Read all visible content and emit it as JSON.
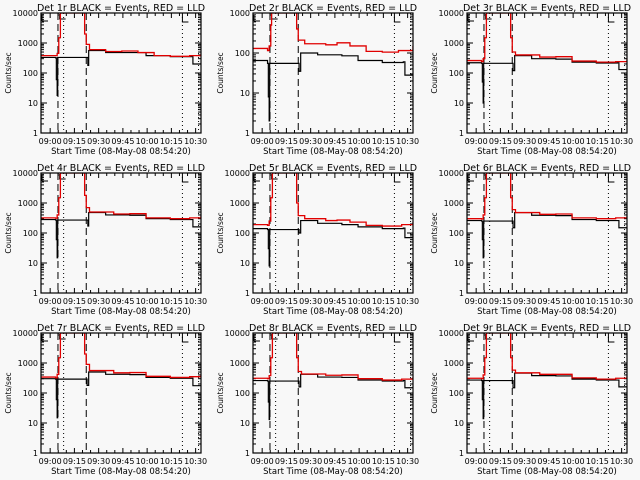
{
  "chart_data": {
    "type": "line",
    "layout": "3x3 grid",
    "shared": {
      "xlabel": "Start Time (08-May-08 08:54:20)",
      "ylabel": "Counts/sec",
      "xticks": [
        "09:00",
        "09:15",
        "09:30",
        "09:45",
        "10:00",
        "10:15",
        "10:30"
      ],
      "x_start_min": 0,
      "x_end_min": 99,
      "x_tick_offsets_min": [
        5.67,
        20.67,
        35.67,
        50.67,
        65.67,
        80.67,
        95.67
      ],
      "y_scale": "log",
      "series_names": [
        "Events",
        "LLD"
      ],
      "series_colors": {
        "Events": "#000000",
        "LLD": "#e00000"
      },
      "markers": {
        "dashed_min": [
          10.5,
          28
        ],
        "dotted_min": [
          14,
          87.5,
          97.5
        ],
        "S_min": 14,
        "E_min": 87.5
      }
    },
    "panels": [
      {
        "title": "Det 1r BLACK = Events, RED = LLD",
        "ylim": [
          1,
          10000
        ],
        "yticks": [
          "1",
          "10",
          "100",
          "1000",
          "10000"
        ],
        "events": [
          [
            0,
            330
          ],
          [
            9,
            320
          ],
          [
            9.5,
            60
          ],
          [
            10,
            18
          ],
          [
            10.3,
            330
          ],
          [
            28,
            330
          ],
          [
            29,
            180
          ],
          [
            29.5,
            560
          ],
          [
            40,
            480
          ],
          [
            55,
            480
          ],
          [
            65,
            380
          ],
          [
            80,
            350
          ],
          [
            93,
            350
          ],
          [
            94,
            200
          ],
          [
            99,
            220
          ]
        ],
        "lld": [
          [
            0,
            380
          ],
          [
            9,
            380
          ],
          [
            10,
            450
          ],
          [
            11,
            1500
          ],
          [
            12,
            12000
          ],
          [
            25,
            12000
          ],
          [
            27,
            2000
          ],
          [
            28,
            900
          ],
          [
            30,
            600
          ],
          [
            40,
            520
          ],
          [
            50,
            540
          ],
          [
            60,
            480
          ],
          [
            70,
            380
          ],
          [
            80,
            360
          ],
          [
            92,
            380
          ],
          [
            99,
            450
          ]
        ]
      },
      {
        "title": "Det 2r BLACK = Events, RED = LLD",
        "ylim": [
          1,
          1000
        ],
        "yticks": [
          "1",
          "10",
          "100",
          "1000"
        ],
        "events": [
          [
            0,
            65
          ],
          [
            9,
            55
          ],
          [
            9.5,
            8
          ],
          [
            10,
            2
          ],
          [
            10.3,
            55
          ],
          [
            28,
            55
          ],
          [
            28.5,
            35
          ],
          [
            29.5,
            100
          ],
          [
            40,
            90
          ],
          [
            55,
            85
          ],
          [
            65,
            65
          ],
          [
            80,
            58
          ],
          [
            93,
            60
          ],
          [
            94,
            28
          ],
          [
            99,
            30
          ]
        ],
        "lld": [
          [
            0,
            130
          ],
          [
            9,
            115
          ],
          [
            10,
            150
          ],
          [
            11,
            500
          ],
          [
            11.5,
            1200
          ],
          [
            26,
            1200
          ],
          [
            27,
            400
          ],
          [
            28,
            210
          ],
          [
            32,
            170
          ],
          [
            45,
            160
          ],
          [
            52,
            180
          ],
          [
            60,
            150
          ],
          [
            70,
            110
          ],
          [
            80,
            105
          ],
          [
            90,
            115
          ],
          [
            99,
            150
          ]
        ]
      },
      {
        "title": "Det 3r BLACK = Events, RED = LLD",
        "ylim": [
          1,
          10000
        ],
        "yticks": [
          "1",
          "10",
          "100",
          "1000",
          "10000"
        ],
        "events": [
          [
            0,
            220
          ],
          [
            9,
            210
          ],
          [
            9.5,
            50
          ],
          [
            10,
            10
          ],
          [
            10.3,
            210
          ],
          [
            28,
            210
          ],
          [
            28.5,
            120
          ],
          [
            29.5,
            380
          ],
          [
            40,
            300
          ],
          [
            55,
            290
          ],
          [
            65,
            230
          ],
          [
            80,
            215
          ],
          [
            93,
            220
          ],
          [
            94,
            130
          ],
          [
            99,
            140
          ]
        ],
        "lld": [
          [
            0,
            260
          ],
          [
            9,
            240
          ],
          [
            10,
            300
          ],
          [
            11,
            1500
          ],
          [
            12,
            12000
          ],
          [
            25,
            12000
          ],
          [
            27,
            1500
          ],
          [
            28,
            500
          ],
          [
            30,
            400
          ],
          [
            45,
            340
          ],
          [
            55,
            350
          ],
          [
            65,
            250
          ],
          [
            80,
            230
          ],
          [
            92,
            240
          ],
          [
            99,
            300
          ]
        ]
      },
      {
        "title": "Det 4r BLACK = Events, RED = LLD",
        "ylim": [
          1,
          10000
        ],
        "yticks": [
          "1",
          "10",
          "100",
          "1000",
          "10000"
        ],
        "events": [
          [
            0,
            280
          ],
          [
            9,
            270
          ],
          [
            9.5,
            60
          ],
          [
            10,
            15
          ],
          [
            10.3,
            270
          ],
          [
            28,
            270
          ],
          [
            29,
            170
          ],
          [
            29.5,
            480
          ],
          [
            40,
            400
          ],
          [
            55,
            390
          ],
          [
            65,
            300
          ],
          [
            80,
            280
          ],
          [
            93,
            280
          ],
          [
            94,
            160
          ],
          [
            99,
            175
          ]
        ],
        "lld": [
          [
            0,
            320
          ],
          [
            9,
            310
          ],
          [
            10,
            400
          ],
          [
            11,
            1500
          ],
          [
            12,
            12000
          ],
          [
            25,
            12000
          ],
          [
            27,
            1800
          ],
          [
            28,
            700
          ],
          [
            30,
            500
          ],
          [
            45,
            430
          ],
          [
            55,
            440
          ],
          [
            65,
            320
          ],
          [
            80,
            300
          ],
          [
            92,
            320
          ],
          [
            99,
            380
          ]
        ]
      },
      {
        "title": "Det 5r BLACK = Events, RED = LLD",
        "ylim": [
          1,
          10000
        ],
        "yticks": [
          "1",
          "10",
          "100",
          "1000",
          "10000"
        ],
        "events": [
          [
            0,
            140
          ],
          [
            9,
            130
          ],
          [
            9.5,
            30
          ],
          [
            10,
            8
          ],
          [
            10.3,
            130
          ],
          [
            28,
            130
          ],
          [
            28.5,
            100
          ],
          [
            29.5,
            260
          ],
          [
            40,
            210
          ],
          [
            55,
            190
          ],
          [
            65,
            160
          ],
          [
            80,
            140
          ],
          [
            93,
            145
          ],
          [
            94,
            70
          ],
          [
            99,
            75
          ]
        ],
        "lld": [
          [
            0,
            190
          ],
          [
            9,
            180
          ],
          [
            10,
            250
          ],
          [
            11,
            1500
          ],
          [
            12,
            12000
          ],
          [
            25,
            12000
          ],
          [
            27,
            1000
          ],
          [
            28,
            380
          ],
          [
            32,
            300
          ],
          [
            45,
            260
          ],
          [
            52,
            270
          ],
          [
            60,
            230
          ],
          [
            70,
            180
          ],
          [
            80,
            170
          ],
          [
            92,
            190
          ],
          [
            99,
            230
          ]
        ]
      },
      {
        "title": "Det 6r BLACK = Events, RED = LLD",
        "ylim": [
          1,
          10000
        ],
        "yticks": [
          "1",
          "10",
          "100",
          "1000",
          "10000"
        ],
        "events": [
          [
            0,
            260
          ],
          [
            9,
            250
          ],
          [
            9.5,
            60
          ],
          [
            10,
            15
          ],
          [
            10.3,
            250
          ],
          [
            28,
            250
          ],
          [
            28.5,
            150
          ],
          [
            29.5,
            480
          ],
          [
            40,
            390
          ],
          [
            55,
            380
          ],
          [
            65,
            280
          ],
          [
            80,
            260
          ],
          [
            93,
            260
          ],
          [
            94,
            150
          ],
          [
            99,
            160
          ]
        ],
        "lld": [
          [
            0,
            300
          ],
          [
            9,
            290
          ],
          [
            10,
            400
          ],
          [
            11,
            1500
          ],
          [
            12,
            12000
          ],
          [
            25,
            12000
          ],
          [
            27,
            1500
          ],
          [
            28,
            600
          ],
          [
            30,
            480
          ],
          [
            45,
            420
          ],
          [
            55,
            430
          ],
          [
            65,
            320
          ],
          [
            80,
            300
          ],
          [
            92,
            320
          ],
          [
            99,
            360
          ]
        ]
      },
      {
        "title": "Det 7r BLACK = Events, RED = LLD",
        "ylim": [
          1,
          10000
        ],
        "yticks": [
          "1",
          "10",
          "100",
          "1000",
          "10000"
        ],
        "events": [
          [
            0,
            300
          ],
          [
            9,
            290
          ],
          [
            9.5,
            60
          ],
          [
            10,
            15
          ],
          [
            10.3,
            290
          ],
          [
            28,
            290
          ],
          [
            28.5,
            180
          ],
          [
            29.5,
            500
          ],
          [
            40,
            420
          ],
          [
            55,
            410
          ],
          [
            65,
            330
          ],
          [
            80,
            310
          ],
          [
            93,
            310
          ],
          [
            94,
            175
          ],
          [
            99,
            185
          ]
        ],
        "lld": [
          [
            0,
            340
          ],
          [
            9,
            320
          ],
          [
            10,
            420
          ],
          [
            11,
            1500
          ],
          [
            12,
            12000
          ],
          [
            25,
            12000
          ],
          [
            27,
            2000
          ],
          [
            28,
            900
          ],
          [
            30,
            560
          ],
          [
            45,
            470
          ],
          [
            55,
            480
          ],
          [
            65,
            360
          ],
          [
            80,
            330
          ],
          [
            92,
            350
          ],
          [
            99,
            420
          ]
        ]
      },
      {
        "title": "Det 8r BLACK = Events, RED = LLD",
        "ylim": [
          1,
          10000
        ],
        "yticks": [
          "1",
          "10",
          "100",
          "1000",
          "10000"
        ],
        "events": [
          [
            0,
            260
          ],
          [
            9,
            250
          ],
          [
            9.5,
            50
          ],
          [
            10,
            13
          ],
          [
            10.3,
            250
          ],
          [
            28,
            250
          ],
          [
            28.5,
            160
          ],
          [
            29.5,
            420
          ],
          [
            40,
            340
          ],
          [
            55,
            330
          ],
          [
            65,
            270
          ],
          [
            80,
            250
          ],
          [
            93,
            260
          ],
          [
            94,
            150
          ],
          [
            99,
            160
          ]
        ],
        "lld": [
          [
            0,
            310
          ],
          [
            9,
            300
          ],
          [
            10,
            380
          ],
          [
            11,
            1500
          ],
          [
            12,
            12000
          ],
          [
            25,
            12000
          ],
          [
            27,
            1500
          ],
          [
            28,
            520
          ],
          [
            30,
            430
          ],
          [
            45,
            390
          ],
          [
            55,
            400
          ],
          [
            65,
            300
          ],
          [
            80,
            270
          ],
          [
            92,
            290
          ],
          [
            99,
            340
          ]
        ]
      },
      {
        "title": "Det 9r BLACK = Events, RED = LLD",
        "ylim": [
          1,
          10000
        ],
        "yticks": [
          "1",
          "10",
          "100",
          "1000",
          "10000"
        ],
        "events": [
          [
            0,
            270
          ],
          [
            9,
            260
          ],
          [
            9.5,
            60
          ],
          [
            10,
            14
          ],
          [
            10.3,
            260
          ],
          [
            28,
            260
          ],
          [
            28.5,
            150
          ],
          [
            29.5,
            460
          ],
          [
            40,
            380
          ],
          [
            55,
            370
          ],
          [
            65,
            290
          ],
          [
            80,
            270
          ],
          [
            93,
            270
          ],
          [
            94,
            160
          ],
          [
            99,
            170
          ]
        ],
        "lld": [
          [
            0,
            310
          ],
          [
            9,
            300
          ],
          [
            10,
            400
          ],
          [
            11,
            1500
          ],
          [
            12,
            12000
          ],
          [
            25,
            12000
          ],
          [
            27,
            1500
          ],
          [
            28,
            580
          ],
          [
            30,
            470
          ],
          [
            45,
            420
          ],
          [
            55,
            420
          ],
          [
            65,
            320
          ],
          [
            80,
            290
          ],
          [
            92,
            310
          ],
          [
            99,
            360
          ]
        ]
      }
    ]
  }
}
